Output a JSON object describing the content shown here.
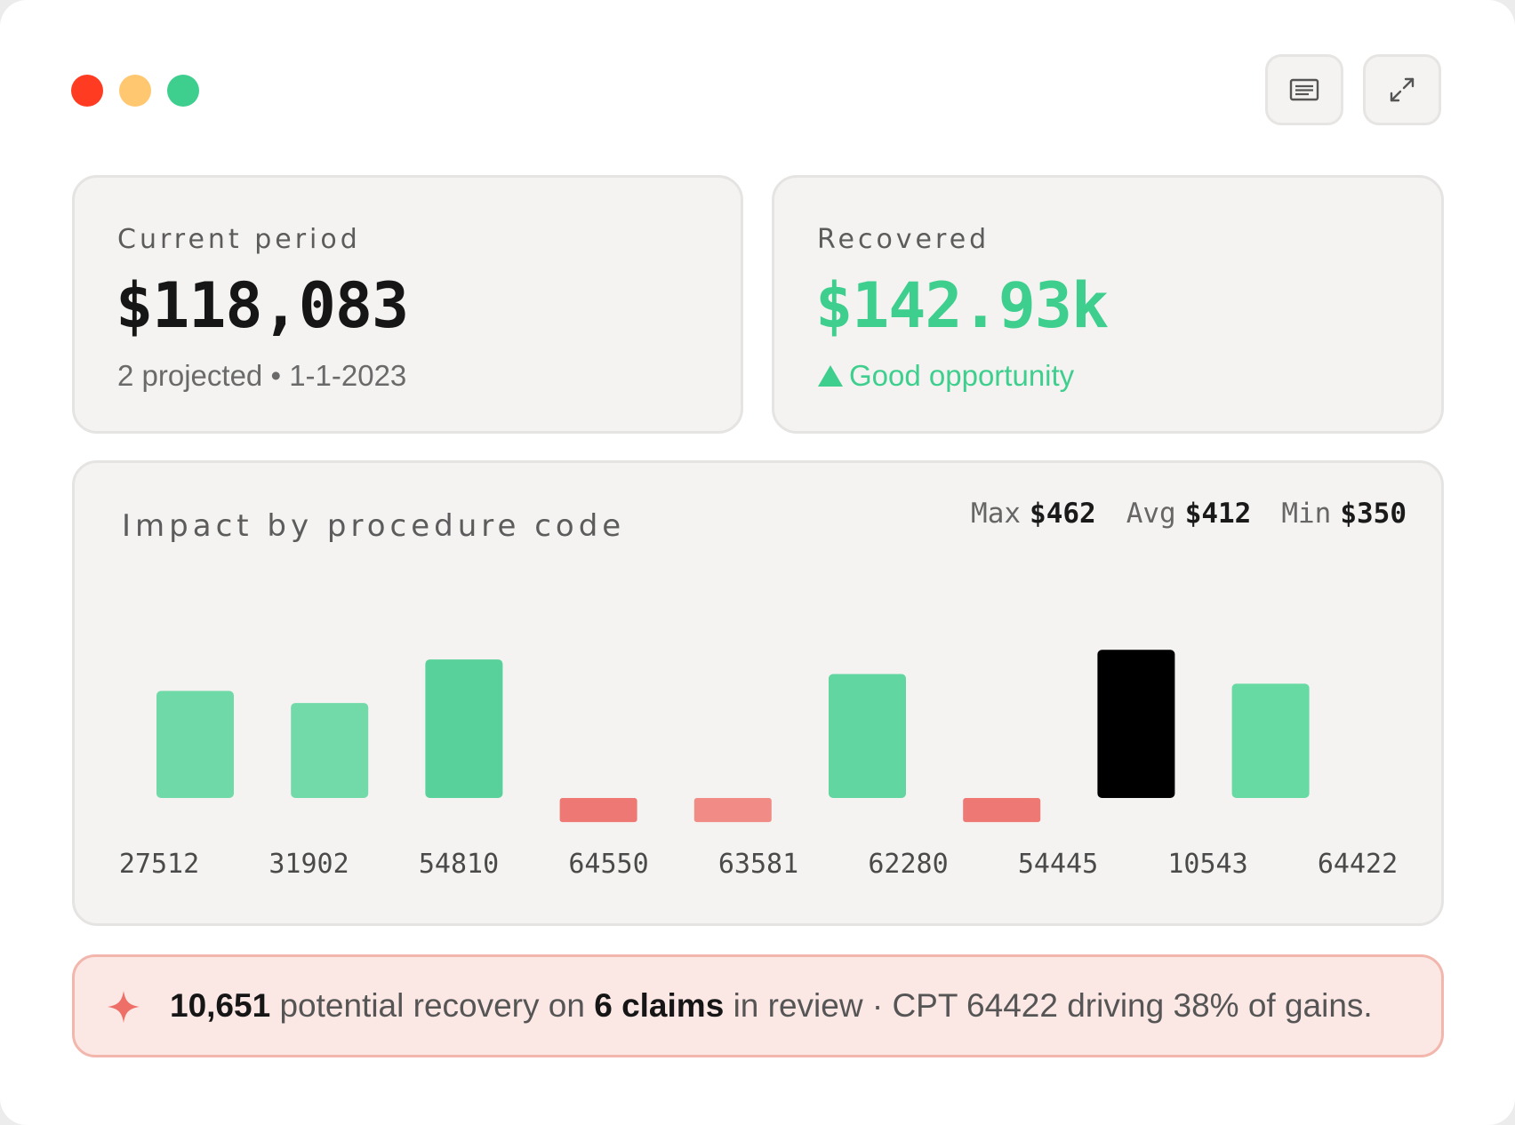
{
  "window": {
    "controls": [
      "close",
      "minimize",
      "maximize"
    ]
  },
  "toolbar": {
    "caption_icon": "caption-icon",
    "expand_icon": "expand-icon"
  },
  "current_period": {
    "label": "Current period",
    "value": "$118,083",
    "projected": "2 projected",
    "separator": "•",
    "date": "1-1-2023"
  },
  "recovered": {
    "label": "Recovered",
    "value": "$142.93k",
    "status": "Good opportunity",
    "status_icon": "triangle-up-icon",
    "color": "#3ecf8e"
  },
  "impact": {
    "title": "Impact by procedure code",
    "max_label": "Max",
    "max_value": "$462",
    "avg_label": "Avg",
    "avg_value": "$412",
    "min_label": "Min",
    "min_value": "$350"
  },
  "chart_data": {
    "type": "bar",
    "categories": [
      "27512",
      "31902",
      "54810",
      "64550",
      "63581",
      "62280",
      "54445",
      "10543",
      "64422"
    ],
    "values": [
      133,
      118,
      172,
      -30,
      -30,
      154,
      -30,
      184,
      142
    ],
    "highlight_index": 7,
    "colors": {
      "positive": [
        "#6fdaa7",
        "#72daa9",
        "#58d29a",
        null,
        null,
        "#62d6a0",
        null,
        "#000000",
        "#67d9a3"
      ],
      "negative": "#ee7873",
      "negative_alt": "#f08b86"
    }
  },
  "banner": {
    "icon": "sparkle-icon",
    "amount": "10,651",
    "text1": "potential recovery on",
    "claims": "6 claims",
    "text2": "in review · CPT 64422 driving 38% of gains."
  }
}
